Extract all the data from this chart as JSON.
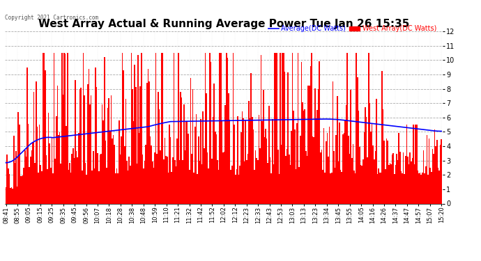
{
  "title": "West Array Actual & Running Average Power Tue Jan 26 15:35",
  "copyright": "Copyright 2021 Cartronics.com",
  "legend_avg": "Average(DC Watts)",
  "legend_west": "West Array(DC Watts)",
  "ylim": [
    0.0,
    12.0
  ],
  "yticks": [
    0.0,
    1.0,
    2.0,
    3.0,
    4.0,
    5.0,
    6.0,
    7.0,
    8.0,
    9.0,
    10.0,
    11.0,
    12.0
  ],
  "bar_color": "#ff0000",
  "avg_color": "#0000ff",
  "background_color": "#ffffff",
  "title_color": "#000000",
  "title_fontsize": 11,
  "xtick_labels": [
    "08:41",
    "08:55",
    "09:05",
    "09:15",
    "09:25",
    "09:35",
    "09:45",
    "09:56",
    "10:07",
    "10:18",
    "10:28",
    "10:38",
    "10:48",
    "10:59",
    "11:10",
    "11:21",
    "11:32",
    "11:42",
    "11:52",
    "12:02",
    "12:12",
    "12:23",
    "12:33",
    "12:43",
    "12:53",
    "13:03",
    "13:13",
    "13:23",
    "13:34",
    "13:45",
    "13:55",
    "14:05",
    "14:16",
    "14:26",
    "14:37",
    "14:47",
    "14:57",
    "15:07",
    "15:20"
  ],
  "n_bars": 390,
  "seed": 42
}
